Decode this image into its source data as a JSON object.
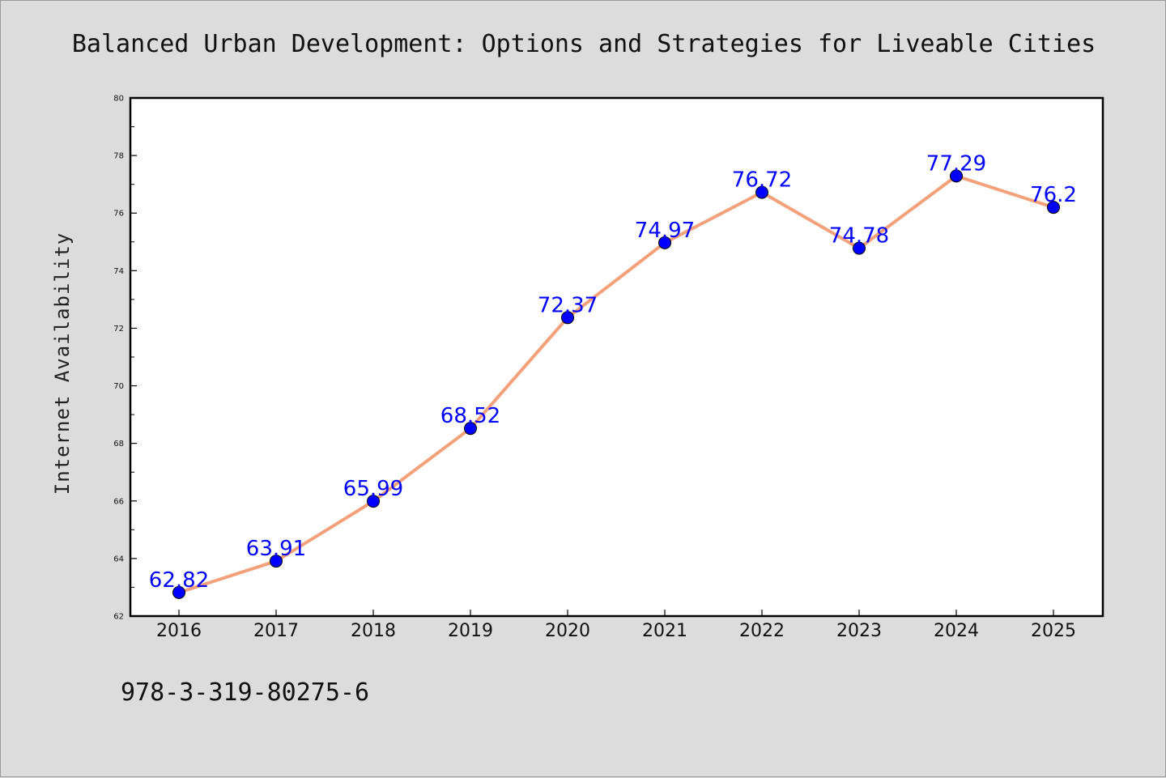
{
  "chart_data": {
    "type": "line",
    "title": "Balanced Urban Development: Options and Strategies for Liveable Cities",
    "xlabel": "",
    "ylabel": "Internet Availability",
    "categories": [
      "2016",
      "2017",
      "2018",
      "2019",
      "2020",
      "2021",
      "2022",
      "2023",
      "2024",
      "2025"
    ],
    "series": [
      {
        "values": [
          62.82,
          63.91,
          65.99,
          68.52,
          72.37,
          74.97,
          76.72,
          74.78,
          77.29,
          76.2
        ],
        "data_labels": [
          "62.82",
          "63.91",
          "65.99",
          "68.52",
          "72.37",
          "74.97",
          "76.72",
          "74.78",
          "77.29",
          "76.2"
        ],
        "line_color": "#f4a07a",
        "marker_color": "#0000ff"
      }
    ],
    "ylim": [
      62,
      80
    ],
    "yticks": [
      "62",
      "64",
      "66",
      "68",
      "70",
      "72",
      "74",
      "76",
      "78",
      "80"
    ],
    "grid": false,
    "legend": "none"
  },
  "footer": {
    "isbn": "978-3-319-80275-6"
  },
  "colors": {
    "background": "#dcdcdc",
    "plot_area": "#ffffff",
    "axis": "#000000"
  }
}
